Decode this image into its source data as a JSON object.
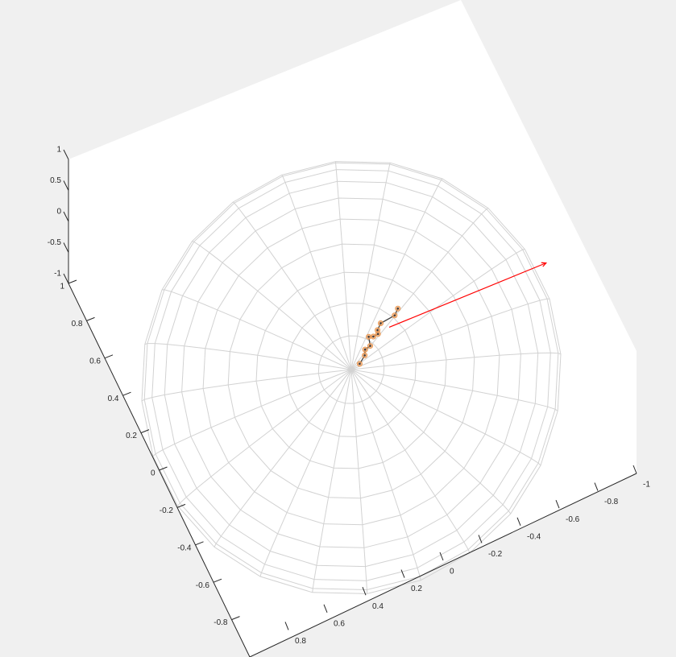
{
  "chart_data": {
    "type": "scatter",
    "title": "",
    "xlabel": "",
    "ylabel": "",
    "zlabel": "",
    "view": "3d",
    "grid": false,
    "colors": {
      "background": "#f0f0f0",
      "axes_plane": "#ffffff",
      "axis": "#262626",
      "sphere_mesh": "#d2d2d2",
      "vector": "#ff0000",
      "points": "#f4a261",
      "trajectory": "#404040"
    },
    "axes": {
      "x": {
        "ticks": [
          -1,
          -0.8,
          -0.6,
          -0.4,
          -0.2,
          0,
          0.2,
          0.4,
          0.6,
          0.8
        ],
        "tick_labels": [
          "-1",
          "-0.8",
          "-0.6",
          "-0.4",
          "-0.2",
          "0",
          "0.2",
          "0.4",
          "0.6",
          "0.8"
        ]
      },
      "y": {
        "ticks": [
          1,
          0.8,
          0.6,
          0.4,
          0.2,
          0,
          -0.2,
          -0.4,
          -0.6,
          -0.8
        ],
        "tick_labels": [
          "1",
          "0.8",
          "0.6",
          "0.4",
          "0.2",
          "0",
          "-0.2",
          "-0.4",
          "-0.6",
          "-0.8"
        ]
      },
      "z": {
        "ticks": [
          1,
          0.5,
          0,
          -0.5,
          -1
        ],
        "tick_labels": [
          "1",
          "0.5",
          "0",
          "-0.5",
          "-1"
        ]
      }
    },
    "sphere": {
      "radius": 1,
      "latitude_rings": 10,
      "meridians": 24
    },
    "vector": {
      "from": [
        -0.08,
        -0.25,
        0.95
      ],
      "to": [
        -0.62,
        -0.85,
        0.0
      ]
    },
    "points": [
      {
        "x": -0.08,
        "y": -0.345,
        "z": 0.93
      },
      {
        "x": -0.08,
        "y": -0.31,
        "z": 0.94
      },
      {
        "x": -0.035,
        "y": -0.25,
        "z": 0.96
      },
      {
        "x": -0.035,
        "y": -0.215,
        "z": 0.97
      },
      {
        "x": -0.045,
        "y": -0.2,
        "z": 0.97
      },
      {
        "x": -0.03,
        "y": -0.18,
        "z": 0.98
      },
      {
        "x": -0.01,
        "y": -0.17,
        "z": 0.98
      },
      {
        "x": -0.035,
        "y": -0.135,
        "z": 0.99
      },
      {
        "x": -0.02,
        "y": -0.11,
        "z": 0.99
      },
      {
        "x": -0.03,
        "y": -0.085,
        "z": 0.99
      },
      {
        "x": -0.025,
        "y": -0.04,
        "z": 0.999
      }
    ]
  }
}
